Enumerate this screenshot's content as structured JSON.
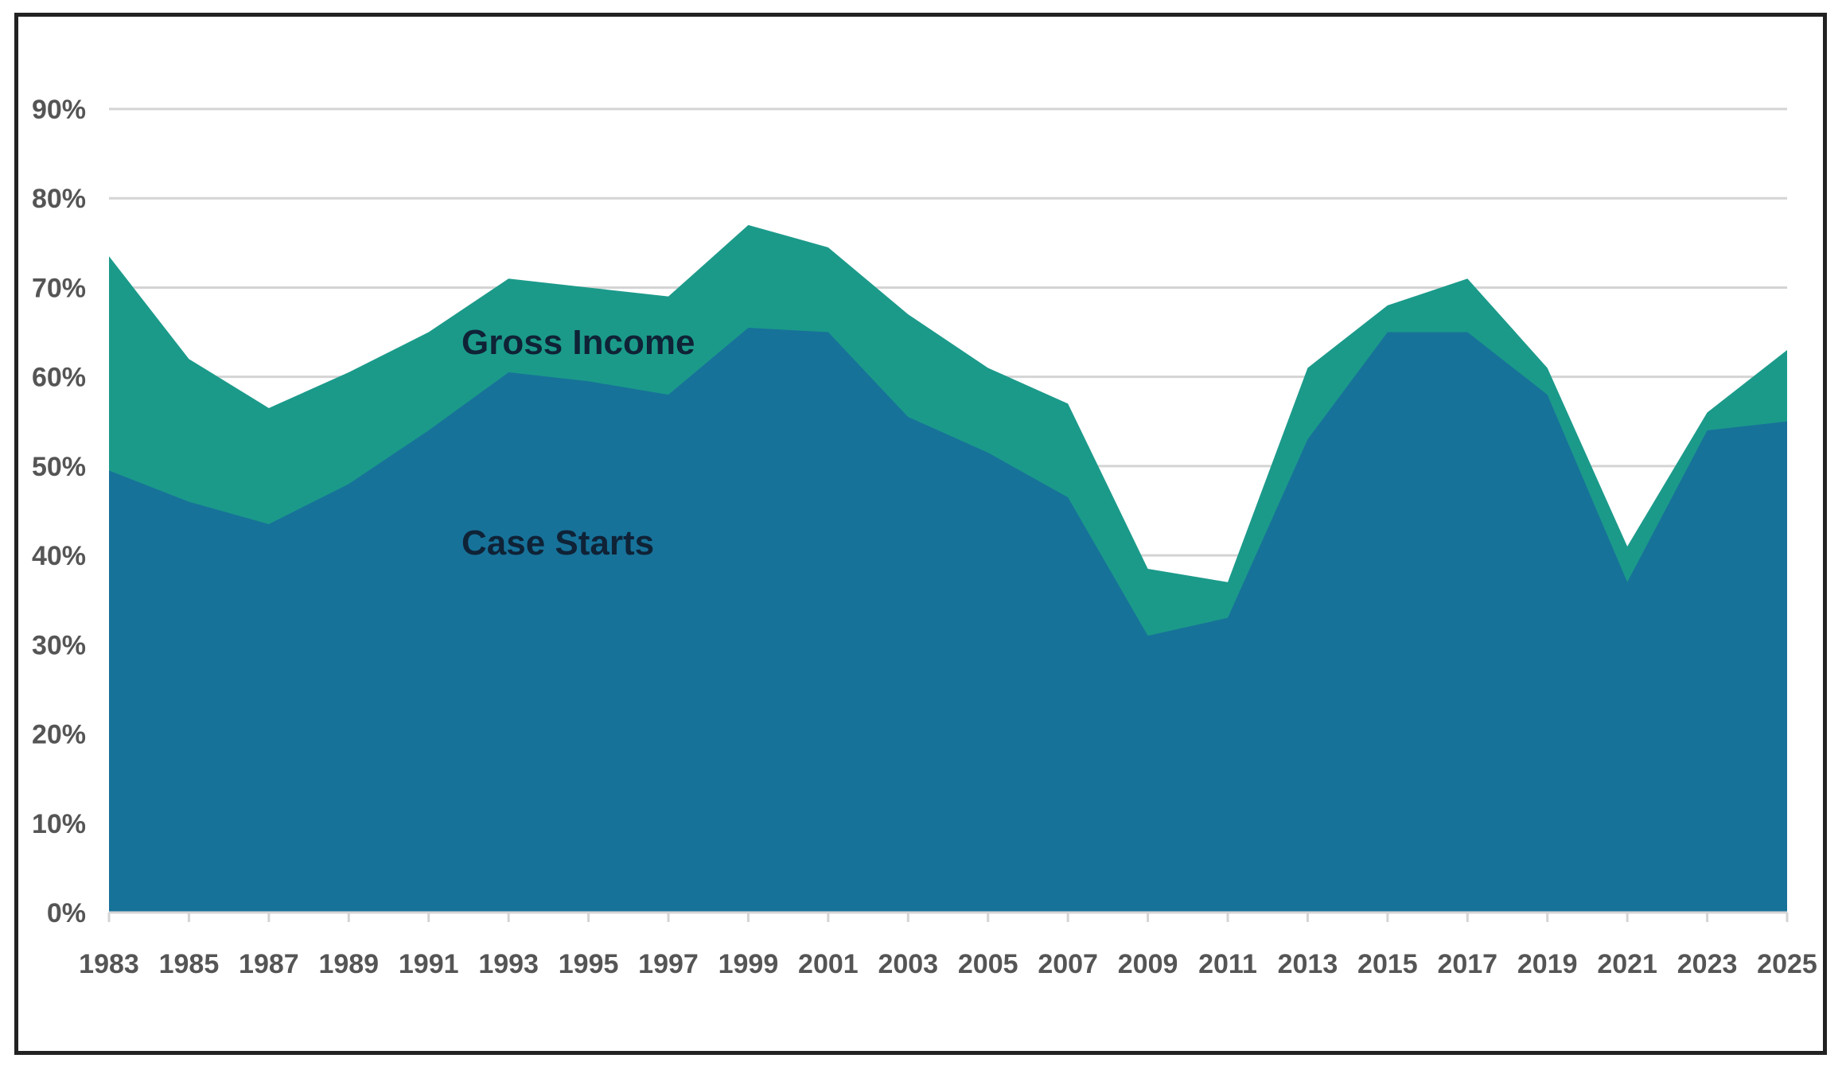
{
  "chart_data": {
    "type": "area",
    "stacked": false,
    "x": [
      1983,
      1985,
      1987,
      1989,
      1991,
      1993,
      1995,
      1997,
      1999,
      2001,
      2003,
      2005,
      2007,
      2009,
      2011,
      2013,
      2015,
      2017,
      2019,
      2021,
      2023,
      2025
    ],
    "x_tick_labels": [
      "1983",
      "1985",
      "1987",
      "1989",
      "1991",
      "1993",
      "1995",
      "1997",
      "1999",
      "2001",
      "2003",
      "2005",
      "2007",
      "2009",
      "2011",
      "2013",
      "2015",
      "2017",
      "2019",
      "2021",
      "2023",
      "2025"
    ],
    "series": [
      {
        "name": "Gross Income",
        "color": "#1b9a8a",
        "values": [
          73.5,
          62,
          56.5,
          60.5,
          65,
          71,
          70,
          69,
          77,
          74.5,
          67,
          61,
          57,
          38.5,
          37,
          61,
          68,
          71,
          61,
          41,
          56,
          63
        ]
      },
      {
        "name": "Case Starts",
        "color": "#177299",
        "values": [
          49.5,
          46,
          43.5,
          48,
          54,
          60.5,
          59.5,
          58,
          65.5,
          65,
          55.5,
          51.5,
          46.5,
          31,
          33,
          53,
          65,
          65,
          58,
          37,
          54,
          55
        ]
      }
    ],
    "y_tick_labels": [
      "0%",
      "10%",
      "20%",
      "30%",
      "40%",
      "50%",
      "60%",
      "70%",
      "80%",
      "90%"
    ],
    "ylim": [
      0,
      90
    ],
    "y_step": 10,
    "grid": true,
    "grid_color": "#d4d4d4",
    "axis_color": "#d4d4d4",
    "title": "",
    "xlabel": "",
    "ylabel": ""
  }
}
